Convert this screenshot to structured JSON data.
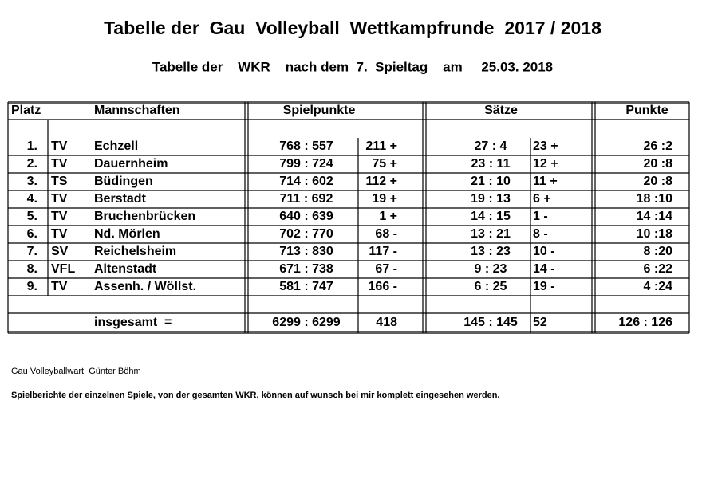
{
  "title": "Tabelle der  Gau  Volleyball  Wettkampfrunde  2017 / 2018",
  "subtitle": "Tabelle der    WKR    nach dem  7.  Spieltag    am     25.03. 2018",
  "table": {
    "headers": [
      "Platz",
      "Mannschaften",
      "Spielpunkte",
      "Sätze",
      "Punkte"
    ],
    "rows": [
      [
        "1.",
        "TV",
        "Echzell",
        "768 : 557",
        "211 +",
        "27 : 4",
        "23 +",
        "26 :2"
      ],
      [
        "2.",
        "TV",
        "Dauernheim",
        "799 : 724",
        "75 +",
        "23 : 11",
        "12 +",
        "20 :8"
      ],
      [
        "3.",
        "TS",
        "Büdingen",
        "714 : 602",
        "112 +",
        "21 : 10",
        "11 +",
        "20 :8"
      ],
      [
        "4.",
        "TV",
        "Berstadt",
        "711 : 692",
        "19 +",
        "19 : 13",
        "6 +",
        "18 :10"
      ],
      [
        "5.",
        "TV",
        "Bruchenbrücken",
        "640 : 639",
        "1 +",
        "14 : 15",
        "1 -",
        "14 :14"
      ],
      [
        "6.",
        "TV",
        "Nd. Mörlen",
        "702 : 770",
        "68 -",
        "13 : 21",
        "8 -",
        "10 :18"
      ],
      [
        "7.",
        "SV",
        "Reichelsheim",
        "713 : 830",
        "117 -",
        "13 : 23",
        "10 -",
        "8 :20"
      ],
      [
        "8.",
        "VFL",
        "Altenstadt",
        "671 : 738",
        "67 -",
        "9 : 23",
        "14 -",
        "6 :22"
      ],
      [
        "9.",
        "TV",
        "Assenh. / Wöllst.",
        "581 : 747",
        "166 -",
        "6 : 25",
        "19 -",
        "4 :24"
      ]
    ],
    "total": [
      "insgesamt  =",
      "6299 : 6299",
      "418",
      "145 : 145",
      "52",
      "126 : 126"
    ]
  },
  "footer": {
    "signature": "Gau Volleyballwart  Günter Böhm",
    "note": "Spielberichte der einzelnen Spiele, von der gesamten WKR, können auf wunsch bei mir komplett eingesehen werden."
  }
}
